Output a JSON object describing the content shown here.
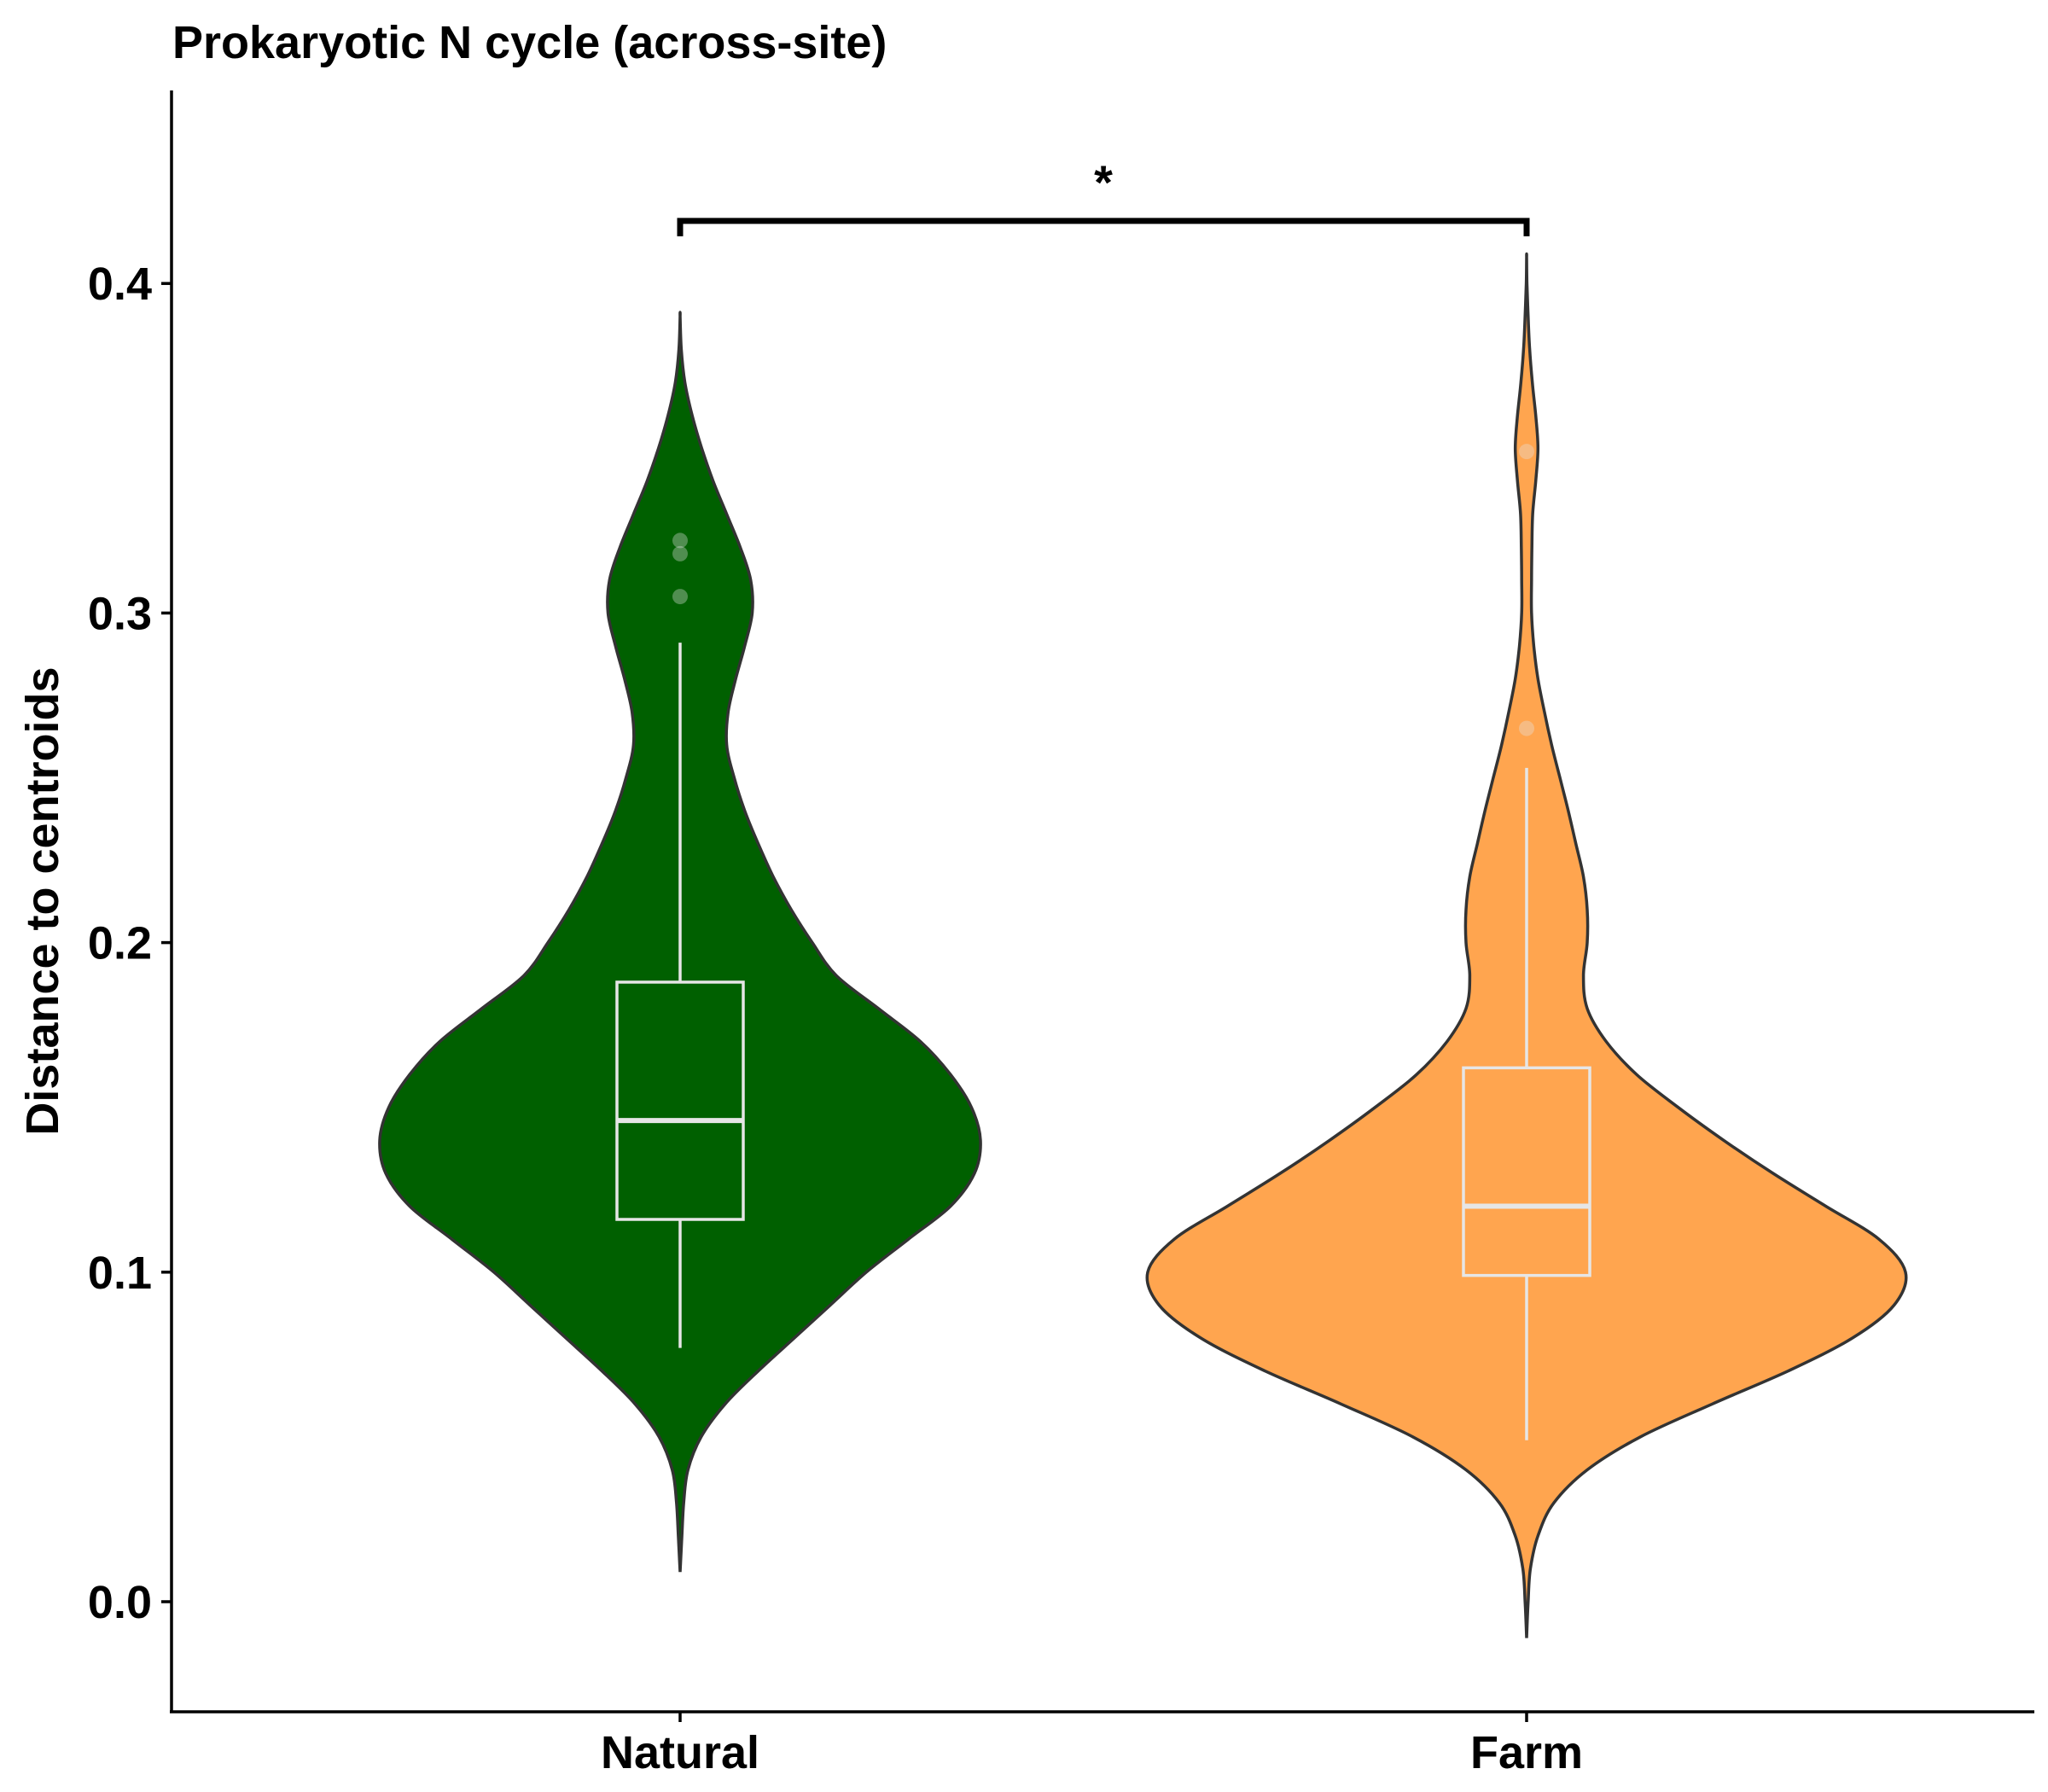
{
  "chart_data": {
    "type": "violin",
    "title": "Prokaryotic N cycle (across-site)",
    "xlabel": "",
    "ylabel": "Distance to centroids",
    "ylim": [
      -0.033,
      0.46
    ],
    "yticks": [
      "0.0",
      "0.1",
      "0.2",
      "0.3",
      "0.4"
    ],
    "ytick_values": [
      0.0,
      0.1,
      0.2,
      0.3,
      0.4
    ],
    "categories": [
      "Natural",
      "Farm"
    ],
    "grid": false,
    "legend": "none",
    "groups": [
      {
        "name": "Natural",
        "fill": "#006000",
        "outline": "#333333",
        "box_color": "#e6e6e6",
        "density_range": [
          0.009,
          0.39
        ],
        "density_profile": [
          [
            0.009,
            0.0
          ],
          [
            0.02,
            0.006
          ],
          [
            0.03,
            0.012
          ],
          [
            0.04,
            0.026
          ],
          [
            0.05,
            0.07
          ],
          [
            0.06,
            0.15
          ],
          [
            0.07,
            0.26
          ],
          [
            0.08,
            0.38
          ],
          [
            0.09,
            0.5
          ],
          [
            0.1,
            0.62
          ],
          [
            0.11,
            0.76
          ],
          [
            0.12,
            0.9
          ],
          [
            0.13,
            0.98
          ],
          [
            0.14,
            1.0
          ],
          [
            0.15,
            0.97
          ],
          [
            0.16,
            0.9
          ],
          [
            0.17,
            0.8
          ],
          [
            0.18,
            0.66
          ],
          [
            0.19,
            0.52
          ],
          [
            0.2,
            0.44
          ],
          [
            0.21,
            0.37
          ],
          [
            0.22,
            0.31
          ],
          [
            0.23,
            0.26
          ],
          [
            0.24,
            0.215
          ],
          [
            0.25,
            0.18
          ],
          [
            0.26,
            0.155
          ],
          [
            0.27,
            0.16
          ],
          [
            0.28,
            0.185
          ],
          [
            0.29,
            0.215
          ],
          [
            0.3,
            0.24
          ],
          [
            0.31,
            0.235
          ],
          [
            0.32,
            0.2
          ],
          [
            0.33,
            0.155
          ],
          [
            0.34,
            0.11
          ],
          [
            0.35,
            0.072
          ],
          [
            0.36,
            0.04
          ],
          [
            0.37,
            0.016
          ],
          [
            0.38,
            0.004
          ],
          [
            0.39,
            0.0
          ]
        ],
        "box": {
          "lower_whisker": 0.077,
          "q1": 0.116,
          "median": 0.146,
          "q3": 0.188,
          "upper_whisker": 0.291
        },
        "outliers": [
          0.305,
          0.318,
          0.322
        ]
      },
      {
        "name": "Farm",
        "fill": "#ffa54f",
        "outline": "#333333",
        "box_color": "#e6e6e6",
        "density_range": [
          -0.011,
          0.408
        ],
        "density_profile": [
          [
            -0.011,
            0.0
          ],
          [
            0.0,
            0.004
          ],
          [
            0.01,
            0.01
          ],
          [
            0.02,
            0.03
          ],
          [
            0.03,
            0.072
          ],
          [
            0.04,
            0.16
          ],
          [
            0.05,
            0.3
          ],
          [
            0.06,
            0.49
          ],
          [
            0.07,
            0.69
          ],
          [
            0.08,
            0.86
          ],
          [
            0.09,
            0.97
          ],
          [
            0.1,
            1.0
          ],
          [
            0.11,
            0.93
          ],
          [
            0.12,
            0.79
          ],
          [
            0.13,
            0.65
          ],
          [
            0.14,
            0.52
          ],
          [
            0.15,
            0.4
          ],
          [
            0.16,
            0.29
          ],
          [
            0.17,
            0.21
          ],
          [
            0.18,
            0.16
          ],
          [
            0.19,
            0.15
          ],
          [
            0.2,
            0.16
          ],
          [
            0.21,
            0.16
          ],
          [
            0.22,
            0.15
          ],
          [
            0.23,
            0.13
          ],
          [
            0.24,
            0.11
          ],
          [
            0.25,
            0.088
          ],
          [
            0.26,
            0.066
          ],
          [
            0.27,
            0.047
          ],
          [
            0.28,
            0.03
          ],
          [
            0.29,
            0.019
          ],
          [
            0.3,
            0.013
          ],
          [
            0.31,
            0.013
          ],
          [
            0.32,
            0.014
          ],
          [
            0.33,
            0.016
          ],
          [
            0.34,
            0.024
          ],
          [
            0.35,
            0.03
          ],
          [
            0.36,
            0.024
          ],
          [
            0.37,
            0.015
          ],
          [
            0.38,
            0.008
          ],
          [
            0.39,
            0.004
          ],
          [
            0.4,
            0.001
          ],
          [
            0.408,
            0.0
          ]
        ],
        "box": {
          "lower_whisker": 0.049,
          "q1": 0.099,
          "median": 0.12,
          "q3": 0.162,
          "upper_whisker": 0.253
        },
        "outliers": [
          0.265,
          0.349
        ]
      }
    ],
    "significance": {
      "label": "*",
      "y": 0.419,
      "between": [
        "Natural",
        "Farm"
      ]
    }
  }
}
